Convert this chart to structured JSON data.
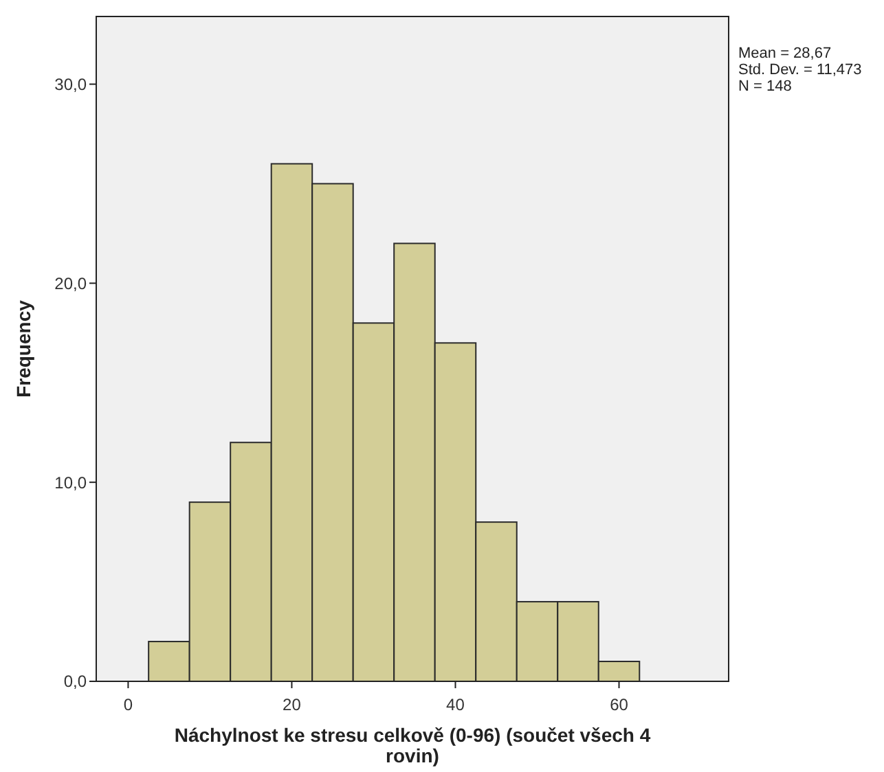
{
  "chart_data": {
    "type": "histogram",
    "xlabel": "Náchylnost ke stresu celkově (0-96) (součet všech 4 rovin)",
    "ylabel": "Frequency",
    "bins": [
      2.5,
      7.5,
      12.5,
      17.5,
      22.5,
      27.5,
      32.5,
      37.5,
      42.5,
      47.5,
      52.5,
      57.5,
      62.5
    ],
    "values": [
      2,
      9,
      12,
      26,
      25,
      18,
      22,
      17,
      8,
      4,
      4,
      1
    ],
    "color": "#d3ce97",
    "xlim": [
      -3.9,
      73.4
    ],
    "ylim": [
      0,
      33.4
    ],
    "xticks": [
      0,
      20,
      40,
      60
    ],
    "yticks": [
      {
        "value": 0,
        "label": "0,0"
      },
      {
        "value": 10,
        "label": "10,0"
      },
      {
        "value": 20,
        "label": "20,0"
      },
      {
        "value": 30,
        "label": "30,0"
      }
    ],
    "annotations": [
      "Mean = 28,67",
      "Std. Dev. = 11,473",
      "N = 148"
    ],
    "grid": false
  }
}
